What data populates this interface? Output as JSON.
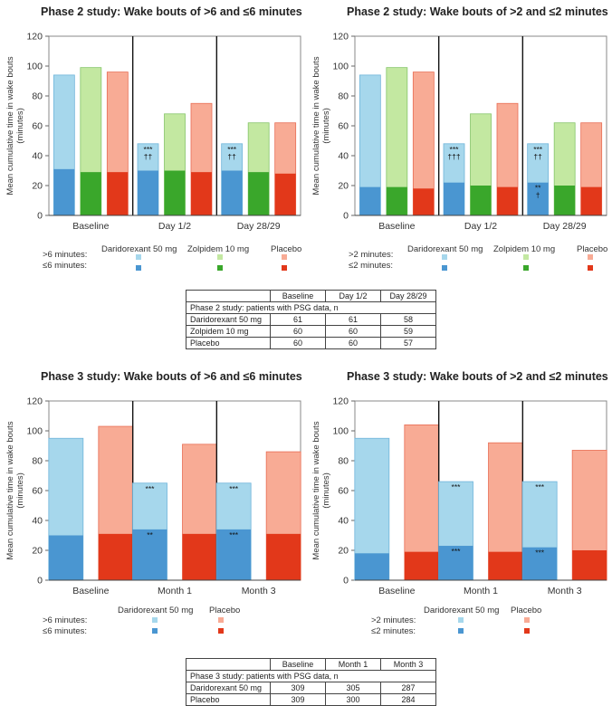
{
  "colors": {
    "dari_light": "#a6d7ec",
    "dari_dark": "#4a96d1",
    "zolp_light": "#c3e8a1",
    "zolp_dark": "#3aa72b",
    "plac_light": "#f8ab95",
    "plac_dark": "#e2381a"
  },
  "chart_data": [
    {
      "type": "bar",
      "title": "Phase 2 study: Wake bouts of >6 and ≤6 minutes",
      "ylabel": "Mean cumulative time in wake bouts (minutes)",
      "ylim": [
        0,
        120
      ],
      "yticks": [
        "0",
        "20",
        "40",
        "60",
        "80",
        "100",
        "120"
      ],
      "categories": [
        "Baseline",
        "Day 1/2",
        "Day 28/29"
      ],
      "treatments": [
        "Daridorexant 50 mg",
        "Zolpidem 10 mg",
        "Placebo"
      ],
      "long_label": ">6 minutes:",
      "short_label": "≤6 minutes:",
      "series": [
        {
          "name": "Daridorexant 50 mg",
          "total": [
            94,
            48,
            48
          ],
          "short": [
            31,
            30,
            30
          ],
          "total_annot": [
            "",
            "***\n††",
            "***\n††"
          ],
          "short_annot": [
            "",
            "",
            ""
          ]
        },
        {
          "name": "Zolpidem 10 mg",
          "total": [
            99,
            68,
            62
          ],
          "short": [
            29,
            30,
            29
          ],
          "total_annot": [
            "",
            "",
            ""
          ],
          "short_annot": [
            "",
            "",
            ""
          ]
        },
        {
          "name": "Placebo",
          "total": [
            96,
            75,
            62
          ],
          "short": [
            29,
            29,
            28
          ],
          "total_annot": [
            "",
            "",
            ""
          ],
          "short_annot": [
            "",
            "",
            ""
          ]
        }
      ]
    },
    {
      "type": "bar",
      "title": "Phase 2 study: Wake bouts of >2 and ≤2 minutes",
      "ylabel": "Mean cumulative time in wake bouts (minutes)",
      "ylim": [
        0,
        120
      ],
      "yticks": [
        "0",
        "20",
        "40",
        "60",
        "80",
        "100",
        "120"
      ],
      "categories": [
        "Baseline",
        "Day 1/2",
        "Day 28/29"
      ],
      "treatments": [
        "Daridorexant 50 mg",
        "Zolpidem 10 mg",
        "Placebo"
      ],
      "long_label": ">2 minutes:",
      "short_label": "≤2 minutes:",
      "series": [
        {
          "name": "Daridorexant 50 mg",
          "total": [
            94,
            48,
            48
          ],
          "short": [
            19,
            22,
            22
          ],
          "total_annot": [
            "",
            "***\n†††",
            "***\n††"
          ],
          "short_annot": [
            "",
            "",
            "**\n†"
          ]
        },
        {
          "name": "Zolpidem 10 mg",
          "total": [
            99,
            68,
            62
          ],
          "short": [
            19,
            20,
            20
          ],
          "total_annot": [
            "",
            "",
            ""
          ],
          "short_annot": [
            "",
            "",
            ""
          ]
        },
        {
          "name": "Placebo",
          "total": [
            96,
            75,
            62
          ],
          "short": [
            18,
            19,
            19
          ],
          "total_annot": [
            "",
            "",
            ""
          ],
          "short_annot": [
            "",
            "",
            ""
          ]
        }
      ]
    },
    {
      "type": "bar",
      "title": "Phase 3 study: Wake bouts of >6 and ≤6 minutes",
      "ylabel": "Mean cumulative time in wake bouts (minutes)",
      "ylim": [
        0,
        120
      ],
      "yticks": [
        "0",
        "20",
        "40",
        "60",
        "80",
        "100",
        "120"
      ],
      "categories": [
        "Baseline",
        "Month 1",
        "Month 3"
      ],
      "treatments": [
        "Daridorexant 50 mg",
        "Placebo"
      ],
      "long_label": ">6 minutes:",
      "short_label": "≤6 minutes:",
      "series": [
        {
          "name": "Daridorexant 50 mg",
          "total": [
            95,
            65,
            65
          ],
          "short": [
            30,
            34,
            34
          ],
          "total_annot": [
            "",
            "***",
            "***"
          ],
          "short_annot": [
            "",
            "**",
            "***"
          ]
        },
        {
          "name": "Placebo",
          "total": [
            103,
            91,
            86
          ],
          "short": [
            31,
            31,
            31
          ],
          "total_annot": [
            "",
            "",
            ""
          ],
          "short_annot": [
            "",
            "",
            ""
          ]
        }
      ]
    },
    {
      "type": "bar",
      "title": "Phase 3 study: Wake bouts of >2 and ≤2 minutes",
      "ylabel": "Mean cumulative time in wake bouts (minutes)",
      "ylim": [
        0,
        120
      ],
      "yticks": [
        "0",
        "20",
        "40",
        "60",
        "80",
        "100",
        "120"
      ],
      "categories": [
        "Baseline",
        "Month 1",
        "Month 3"
      ],
      "treatments": [
        "Daridorexant 50 mg",
        "Placebo"
      ],
      "long_label": ">2 minutes:",
      "short_label": "≤2 minutes:",
      "series": [
        {
          "name": "Daridorexant 50 mg",
          "total": [
            95,
            66,
            66
          ],
          "short": [
            18,
            23,
            22
          ],
          "total_annot": [
            "",
            "***",
            "***"
          ],
          "short_annot": [
            "",
            "***",
            "***"
          ]
        },
        {
          "name": "Placebo",
          "total": [
            104,
            92,
            87
          ],
          "short": [
            19,
            19,
            20
          ],
          "total_annot": [
            "",
            "",
            ""
          ],
          "short_annot": [
            "",
            "",
            ""
          ]
        }
      ]
    }
  ],
  "tables": {
    "phase2": {
      "headers": [
        "",
        "Baseline",
        "Day 1/2",
        "Day 28/29"
      ],
      "caption": "Phase 2 study: patients with PSG data, n",
      "rows": [
        {
          "label": "Daridorexant 50 mg",
          "v1": "61",
          "v2": "61",
          "v3": "58"
        },
        {
          "label": "Zolpidem 10 mg",
          "v1": "60",
          "v2": "60",
          "v3": "59"
        },
        {
          "label": "Placebo",
          "v1": "60",
          "v2": "60",
          "v3": "57"
        }
      ]
    },
    "phase3": {
      "headers": [
        "",
        "Baseline",
        "Month 1",
        "Month 3"
      ],
      "caption": "Phase 3 study: patients with PSG data, n",
      "rows": [
        {
          "label": "Daridorexant 50 mg",
          "v1": "309",
          "v2": "305",
          "v3": "287"
        },
        {
          "label": "Placebo",
          "v1": "309",
          "v2": "300",
          "v3": "284"
        }
      ]
    }
  }
}
